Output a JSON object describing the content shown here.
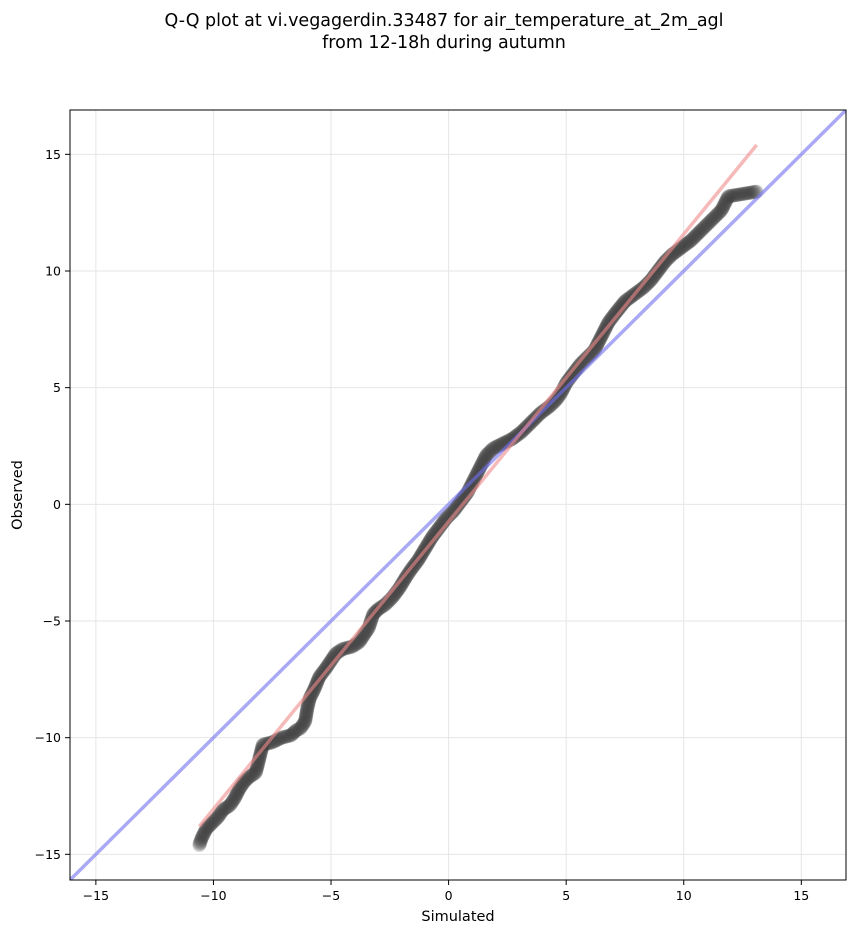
{
  "chart_data": {
    "type": "scatter",
    "title": [
      "Q-Q plot at vi.vegagerdin.33487 for air_temperature_at_2m_agl",
      "from 12-18h during autumn"
    ],
    "xlabel": "Simulated",
    "ylabel": "Observed",
    "xlim": [
      -16.1,
      16.9
    ],
    "ylim": [
      -16.1,
      16.9
    ],
    "xticks": [
      -15,
      -10,
      -5,
      0,
      5,
      10,
      15
    ],
    "yticks": [
      -15,
      -10,
      -5,
      0,
      5,
      10,
      15
    ],
    "xtick_labels": [
      "−15",
      "−10",
      "−5",
      "0",
      "5",
      "10",
      "15"
    ],
    "ytick_labels": [
      "−15",
      "−10",
      "−5",
      "0",
      "5",
      "10",
      "15"
    ],
    "grid": true,
    "legend": "none",
    "series": [
      {
        "kind": "quantile-points",
        "color": "#3a3a3a",
        "points": [
          [
            -10.6,
            -14.6
          ],
          [
            -10.5,
            -14.3
          ],
          [
            -10.3,
            -13.9
          ],
          [
            -10.1,
            -13.7
          ],
          [
            -9.8,
            -13.4
          ],
          [
            -9.6,
            -13.1
          ],
          [
            -9.3,
            -12.9
          ],
          [
            -9.1,
            -12.6
          ],
          [
            -8.9,
            -12.2
          ],
          [
            -8.7,
            -11.9
          ],
          [
            -8.5,
            -11.7
          ],
          [
            -8.2,
            -11.5
          ],
          [
            -7.9,
            -10.3
          ],
          [
            -7.5,
            -10.2
          ],
          [
            -7.1,
            -10.0
          ],
          [
            -6.7,
            -9.9
          ],
          [
            -6.5,
            -9.7
          ],
          [
            -6.3,
            -9.6
          ],
          [
            -6.1,
            -9.3
          ],
          [
            -6.0,
            -8.7
          ],
          [
            -5.9,
            -8.3
          ],
          [
            -5.7,
            -7.9
          ],
          [
            -5.5,
            -7.4
          ],
          [
            -5.2,
            -7.0
          ],
          [
            -5.0,
            -6.7
          ],
          [
            -4.8,
            -6.4
          ],
          [
            -4.5,
            -6.2
          ],
          [
            -4.1,
            -6.1
          ],
          [
            -3.8,
            -5.9
          ],
          [
            -3.6,
            -5.6
          ],
          [
            -3.4,
            -5.3
          ],
          [
            -3.3,
            -5.0
          ],
          [
            -3.2,
            -4.7
          ],
          [
            -3.0,
            -4.5
          ],
          [
            -2.7,
            -4.3
          ],
          [
            -2.4,
            -4.0
          ],
          [
            -2.1,
            -3.6
          ],
          [
            -1.8,
            -3.1
          ],
          [
            -1.6,
            -2.8
          ],
          [
            -1.3,
            -2.4
          ],
          [
            -1.0,
            -1.9
          ],
          [
            -0.7,
            -1.4
          ],
          [
            -0.4,
            -1.0
          ],
          [
            -0.1,
            -0.6
          ],
          [
            0.2,
            -0.3
          ],
          [
            0.5,
            0.1
          ],
          [
            0.8,
            0.5
          ],
          [
            1.0,
            0.9
          ],
          [
            1.2,
            1.3
          ],
          [
            1.4,
            1.7
          ],
          [
            1.6,
            2.1
          ],
          [
            1.9,
            2.4
          ],
          [
            2.3,
            2.6
          ],
          [
            2.7,
            2.8
          ],
          [
            3.1,
            3.1
          ],
          [
            3.5,
            3.5
          ],
          [
            3.9,
            3.9
          ],
          [
            4.3,
            4.2
          ],
          [
            4.6,
            4.5
          ],
          [
            4.8,
            4.8
          ],
          [
            5.0,
            5.2
          ],
          [
            5.3,
            5.6
          ],
          [
            5.6,
            6.0
          ],
          [
            5.9,
            6.3
          ],
          [
            6.2,
            6.6
          ],
          [
            6.4,
            7.0
          ],
          [
            6.6,
            7.4
          ],
          [
            6.8,
            7.8
          ],
          [
            7.1,
            8.2
          ],
          [
            7.5,
            8.7
          ],
          [
            7.9,
            9.0
          ],
          [
            8.3,
            9.3
          ],
          [
            8.6,
            9.6
          ],
          [
            8.9,
            10.0
          ],
          [
            9.2,
            10.4
          ],
          [
            9.5,
            10.7
          ],
          [
            9.9,
            11.0
          ],
          [
            10.3,
            11.3
          ],
          [
            10.7,
            11.7
          ],
          [
            11.0,
            12.0
          ],
          [
            11.3,
            12.3
          ],
          [
            11.6,
            12.6
          ],
          [
            11.9,
            13.2
          ],
          [
            13.1,
            13.4
          ]
        ]
      },
      {
        "kind": "one-to-one-line",
        "color": "#6f6ff0",
        "from": [
          -16.1,
          -16.1
        ],
        "to": [
          16.9,
          16.9
        ]
      },
      {
        "kind": "fit-line",
        "color": "#f08a8a",
        "from": [
          -10.6,
          -13.8
        ],
        "to": [
          13.1,
          15.4
        ]
      }
    ]
  }
}
